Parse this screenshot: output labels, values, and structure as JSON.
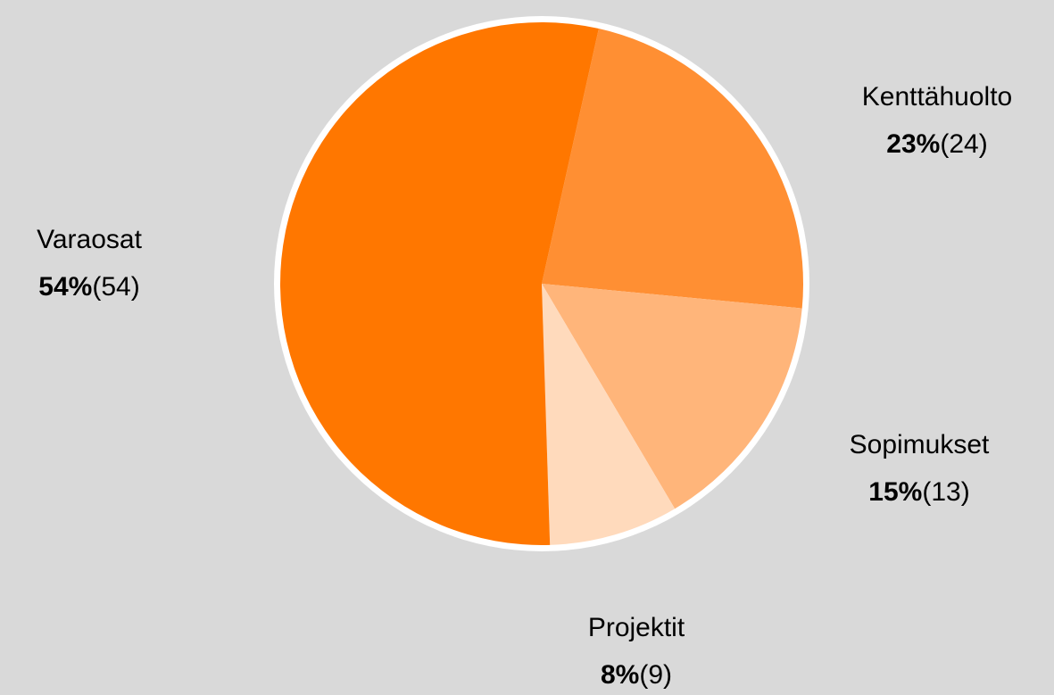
{
  "chart_data": {
    "type": "pie",
    "categories": [
      "Kenttähuolto",
      "Sopimukset",
      "Projektit",
      "Varaosat"
    ],
    "values": [
      23,
      15,
      8,
      54
    ],
    "value_labels": [
      "23%",
      "15%",
      "8%",
      "54%"
    ],
    "count_labels": [
      "(24)",
      "(13)",
      "(9)",
      "(54)"
    ],
    "colors": [
      "#ff8f33",
      "#ffb57a",
      "#ffdabc",
      "#ff7700"
    ]
  }
}
